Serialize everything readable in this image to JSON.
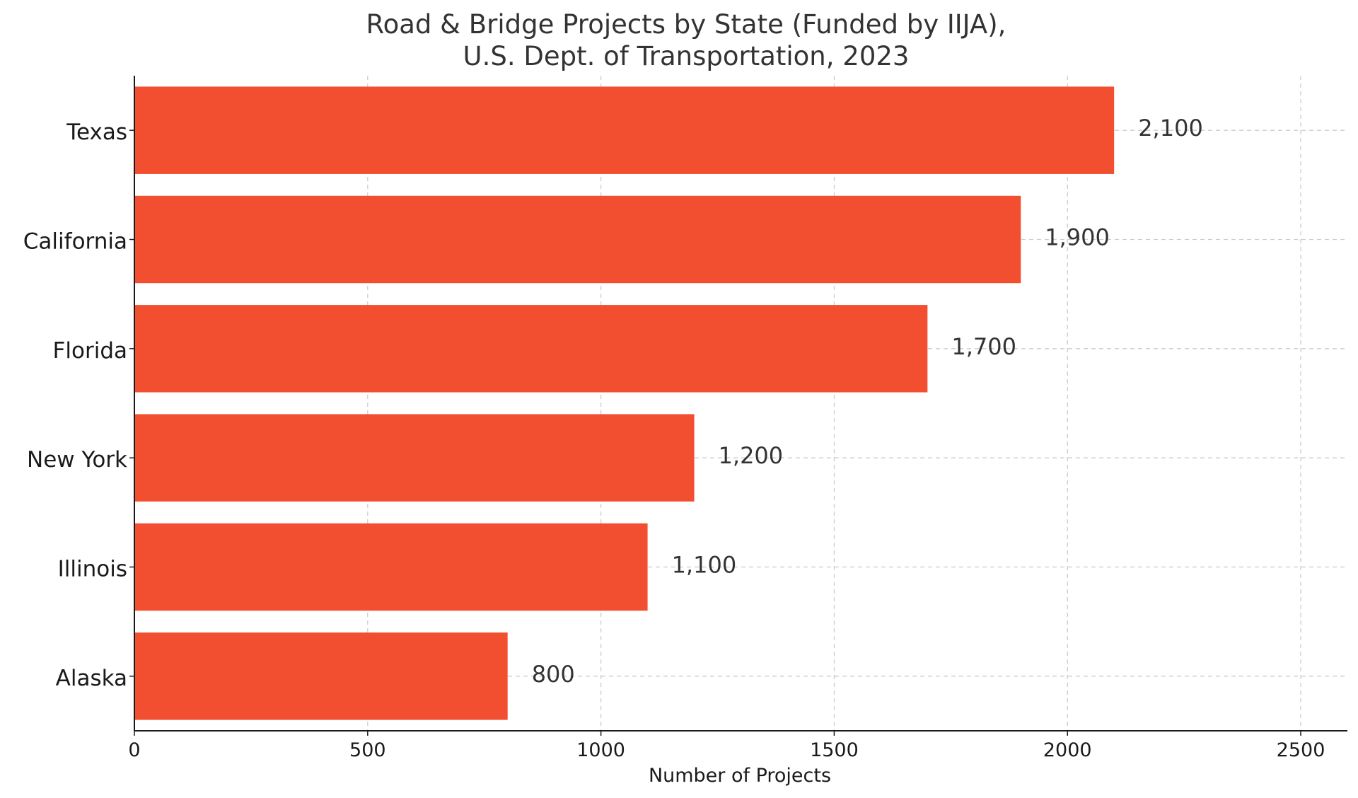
{
  "chart_data": {
    "type": "bar",
    "orientation": "horizontal",
    "title_lines": [
      "Road & Bridge Projects by State (Funded by IIJA),",
      "U.S. Dept. of Transportation, 2023"
    ],
    "xlabel": "Number of Projects",
    "ylabel": "",
    "categories": [
      "Texas",
      "California",
      "Florida",
      "New York",
      "Illinois",
      "Alaska"
    ],
    "values": [
      2100,
      1900,
      1700,
      1200,
      1100,
      800
    ],
    "value_labels": [
      "2,100",
      "1,900",
      "1,700",
      "1,200",
      "1,100",
      "800"
    ],
    "xlim": [
      0,
      2600
    ],
    "xticks": [
      0,
      500,
      1000,
      1500,
      2000,
      2500
    ],
    "xtick_labels": [
      "0",
      "500",
      "1000",
      "1500",
      "2000",
      "2500"
    ],
    "grid": true,
    "grid_style": "dashed",
    "bar_color": "#f24e30",
    "legend": "none"
  }
}
